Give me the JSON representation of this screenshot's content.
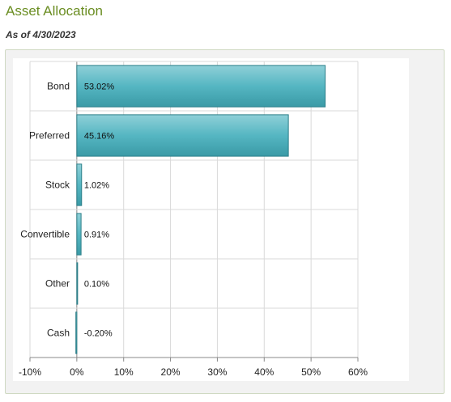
{
  "header": {
    "title": "Asset Allocation",
    "as_of": "As of 4/30/2023"
  },
  "colors": {
    "title": "#6b8e23",
    "bar_fill": "#4fb3bf",
    "bar_stroke": "#2c7f89",
    "grid": "#d9d9d9",
    "frame_bg": "#f2f2f2"
  },
  "chart_data": {
    "type": "bar",
    "orientation": "horizontal",
    "categories": [
      "Bond",
      "Preferred",
      "Stock",
      "Convertible",
      "Other",
      "Cash"
    ],
    "values": [
      53.02,
      45.16,
      1.02,
      0.91,
      0.1,
      -0.2
    ],
    "value_labels": [
      "53.02%",
      "45.16%",
      "1.02%",
      "0.91%",
      "0.10%",
      "-0.20%"
    ],
    "x_ticks": [
      -10,
      0,
      10,
      20,
      30,
      40,
      50,
      60
    ],
    "x_tick_labels": [
      "-10%",
      "0%",
      "10%",
      "20%",
      "30%",
      "40%",
      "50%",
      "60%"
    ],
    "xlim": [
      -10,
      60
    ],
    "grid": true,
    "legend": "none"
  }
}
